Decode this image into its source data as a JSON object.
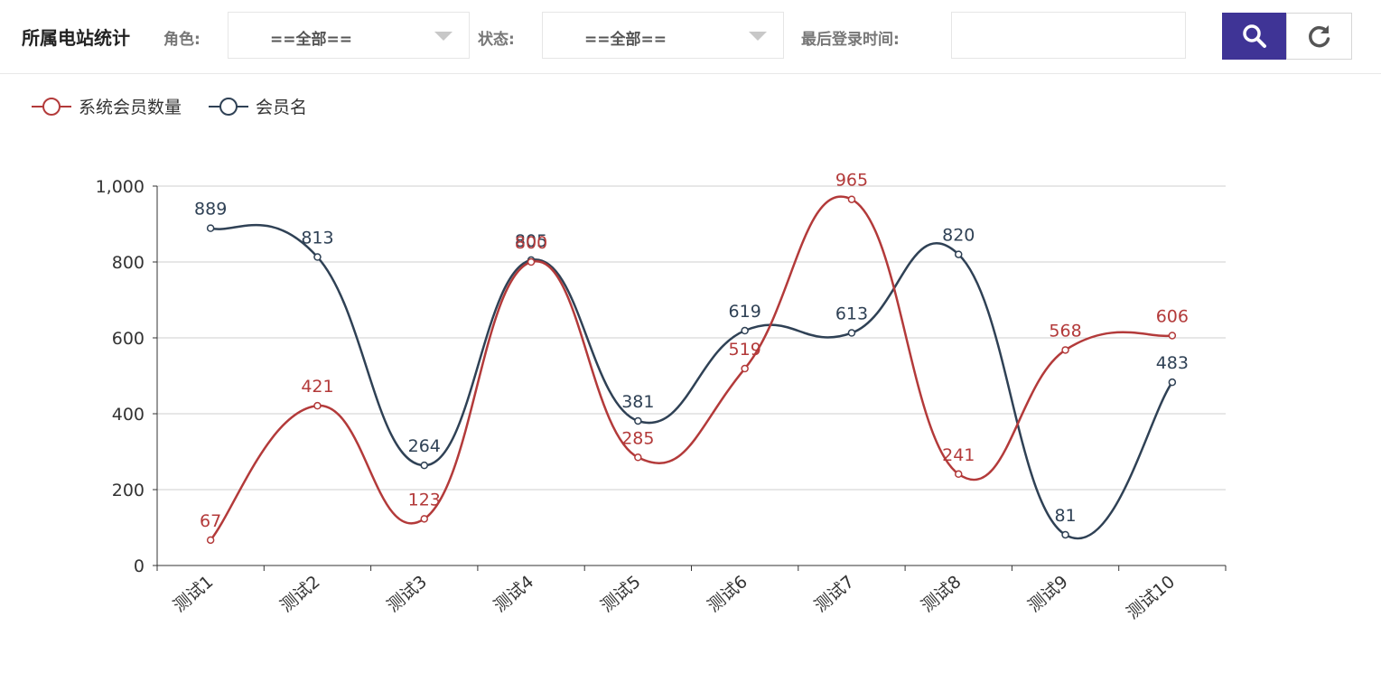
{
  "header": {
    "title": "所属电站统计",
    "role_label": "角色:",
    "role_value": "==全部==",
    "status_label": "状态:",
    "status_value": "==全部==",
    "last_login_label": "最后登录时间:",
    "last_login_value": ""
  },
  "buttons": {
    "search_icon": "search-icon",
    "refresh_icon": "refresh-icon"
  },
  "chart_data": {
    "type": "line",
    "smooth": true,
    "categories": [
      "测试1",
      "测试2",
      "测试3",
      "测试4",
      "测试5",
      "测试6",
      "测试7",
      "测试8",
      "测试9",
      "测试10"
    ],
    "series": [
      {
        "name": "系统会员数量",
        "color": "#b33a3a",
        "values": [
          67,
          421,
          123,
          800,
          285,
          519,
          965,
          241,
          568,
          606
        ]
      },
      {
        "name": "会员名",
        "color": "#2f4155",
        "values": [
          889,
          813,
          264,
          805,
          381,
          619,
          613,
          820,
          81,
          483
        ]
      }
    ],
    "ylim": [
      0,
      1000
    ],
    "yticks": [
      0,
      200,
      400,
      600,
      800,
      1000
    ],
    "ytick_labels": [
      "0",
      "200",
      "400",
      "600",
      "800",
      "1,000"
    ],
    "grid": true,
    "legend_position": "top-left",
    "xlabel_rotation": -40
  }
}
